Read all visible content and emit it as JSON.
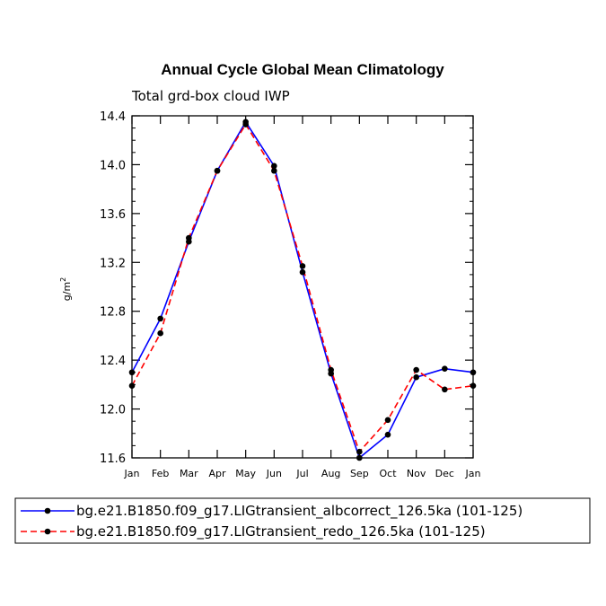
{
  "chart_data": {
    "type": "line",
    "title": "Annual Cycle Global Mean Climatology",
    "subtitle": "Total grd-box cloud IWP",
    "ylabel": "g/m",
    "ylabel_sup": "2",
    "xlabel": "",
    "categories": [
      "Jan",
      "Feb",
      "Mar",
      "Apr",
      "May",
      "Jun",
      "Jul",
      "Aug",
      "Sep",
      "Oct",
      "Nov",
      "Dec",
      "Jan"
    ],
    "ylim": [
      11.6,
      14.4
    ],
    "yticks": [
      11.6,
      12.0,
      12.4,
      12.8,
      13.2,
      13.6,
      14.0,
      14.4
    ],
    "ytick_labels": [
      "11.6",
      "12.0",
      "12.4",
      "12.8",
      "13.2",
      "13.6",
      "14.0",
      "14.4"
    ],
    "series": [
      {
        "name": "bg.e21.B1850.f09_g17.LIGtransient_albcorrect_126.5ka (101-125)",
        "color": "#0000ff",
        "dash": "solid",
        "values": [
          12.3,
          12.74,
          13.37,
          13.95,
          14.35,
          13.99,
          13.12,
          12.29,
          11.6,
          11.79,
          12.26,
          12.33,
          12.3
        ]
      },
      {
        "name": "bg.e21.B1850.f09_g17.LIGtransient_redo_126.5ka (101-125)",
        "color": "#ff0000",
        "dash": "dashed",
        "values": [
          12.19,
          12.62,
          13.4,
          13.95,
          14.33,
          13.95,
          13.17,
          12.32,
          11.65,
          11.91,
          12.32,
          12.16,
          12.19
        ]
      }
    ]
  }
}
